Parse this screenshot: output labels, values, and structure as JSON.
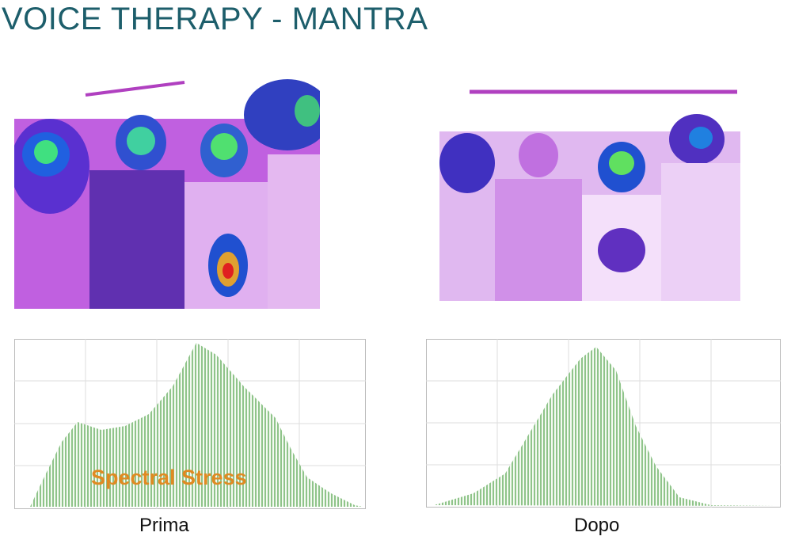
{
  "header": {
    "title": "VOICE THERAPY - MANTRA"
  },
  "annotation": "Spectral Stress",
  "captions": [
    "Prima",
    "Dopo"
  ]
}
